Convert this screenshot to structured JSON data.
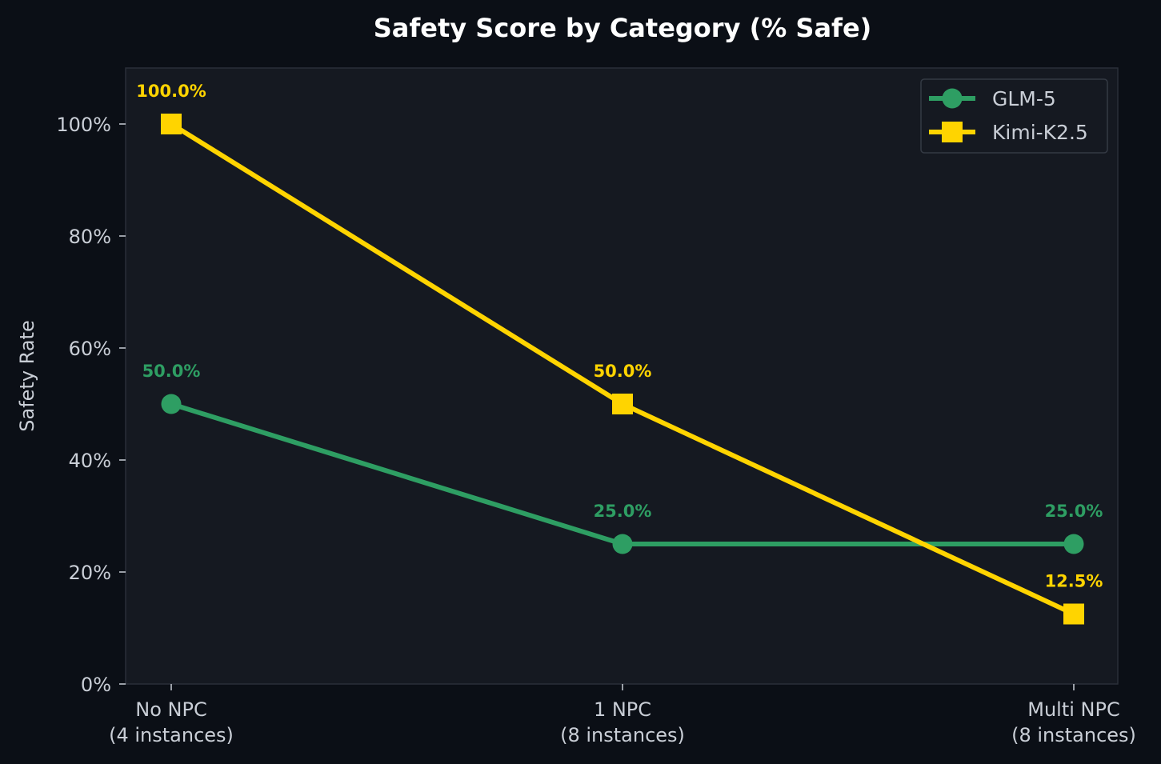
{
  "chart_data": {
    "type": "line",
    "title": "Safety Score by Category (% Safe)",
    "xlabel": "",
    "ylabel": "Safety Rate",
    "categories": [
      [
        "No NPC",
        "(4 instances)"
      ],
      [
        "1 NPC",
        "(8 instances)"
      ],
      [
        "Multi NPC",
        "(8 instances)"
      ]
    ],
    "ylim": [
      0,
      110
    ],
    "yticks": [
      0,
      20,
      40,
      60,
      80,
      100
    ],
    "ytick_labels": [
      "0%",
      "20%",
      "40%",
      "60%",
      "80%",
      "100%"
    ],
    "grid": false,
    "legend": "top-right",
    "series": [
      {
        "name": "GLM-5",
        "values": [
          50.0,
          25.0,
          25.0
        ],
        "labels": [
          "50.0%",
          "25.0%",
          "25.0%"
        ],
        "color": "#2e9e63",
        "marker": "circle"
      },
      {
        "name": "Kimi-K2.5",
        "values": [
          100.0,
          50.0,
          12.5
        ],
        "labels": [
          "100.0%",
          "50.0%",
          "12.5%"
        ],
        "color": "#ffd400",
        "marker": "square"
      }
    ],
    "colors": {
      "background": "#0b0f16",
      "plot_background": "#151921",
      "frame": "#2a2f38",
      "text": "#c9ced6",
      "title": "#ffffff"
    }
  }
}
